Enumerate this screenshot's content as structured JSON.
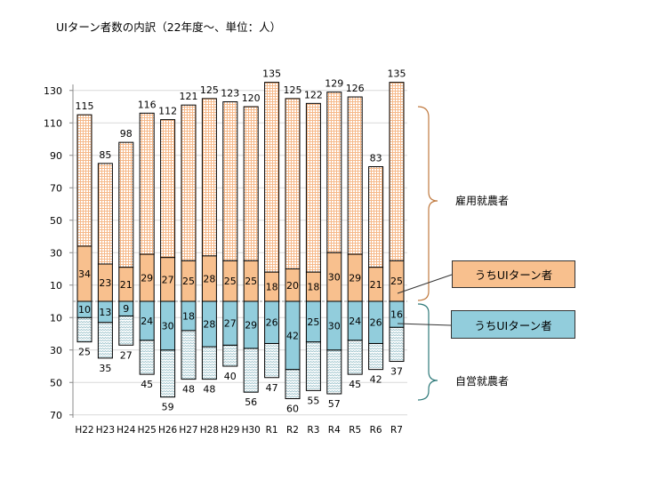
{
  "chart_data": {
    "type": "bar",
    "stacked": true,
    "title": "UIターン者数の内訳（22年度〜、単位：人）",
    "categories": [
      "H22",
      "H23",
      "H24",
      "H25",
      "H26",
      "H27",
      "H28",
      "H29",
      "H30",
      "R1",
      "R2",
      "R3",
      "R4",
      "R5",
      "R6",
      "R7"
    ],
    "upper": {
      "name": "雇用就農者",
      "totals": [
        115,
        85,
        98,
        116,
        112,
        121,
        125,
        123,
        120,
        135,
        125,
        122,
        129,
        126,
        83,
        135
      ],
      "ui_name": "うちUIターン者",
      "ui": [
        34,
        23,
        21,
        29,
        27,
        25,
        28,
        25,
        25,
        18,
        20,
        18,
        30,
        29,
        21,
        25
      ]
    },
    "lower": {
      "name": "自営就農者",
      "totals": [
        25,
        35,
        27,
        45,
        59,
        48,
        48,
        40,
        56,
        47,
        60,
        55,
        57,
        45,
        42,
        37
      ],
      "ui_name": "うちUIターン者",
      "ui": [
        10,
        13,
        9,
        24,
        30,
        18,
        28,
        27,
        29,
        26,
        42,
        25,
        30,
        24,
        26,
        16
      ]
    },
    "y_ticks_upper": [
      10,
      30,
      50,
      70,
      90,
      110,
      130
    ],
    "y_ticks_lower": [
      10,
      30,
      50,
      70
    ],
    "ylim_upper": [
      0,
      130
    ],
    "ylim_lower": [
      0,
      70
    ],
    "grid": true,
    "colors": {
      "upper_ui": "#f8c08e",
      "upper_rest_pattern": "#f6b98a",
      "lower_ui": "#92cddc",
      "lower_rest_pattern": "#9cc3cc",
      "upper_brace": "#c07a40",
      "lower_brace": "#2f7a7a"
    }
  }
}
